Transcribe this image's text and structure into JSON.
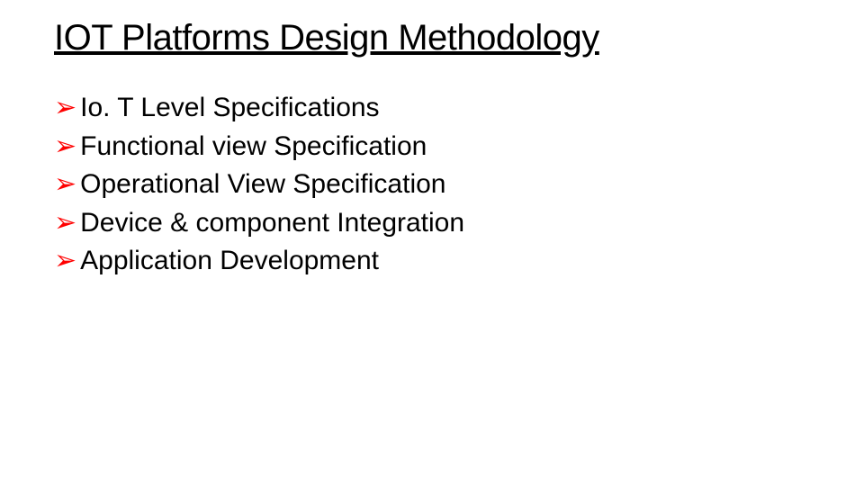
{
  "title": "IOT Platforms Design Methodology",
  "bullet_marker": "➢",
  "bullets": [
    "Io. T Level Specifications",
    "Functional view Specification",
    "Operational View Specification",
    "Device & component Integration",
    "Application Development"
  ],
  "colors": {
    "background": "#ffffff",
    "text": "#000000",
    "bullet_accent": "#ff0000"
  },
  "typography": {
    "title_fontsize": 40,
    "body_fontsize": 30,
    "font_family": "Arial"
  }
}
